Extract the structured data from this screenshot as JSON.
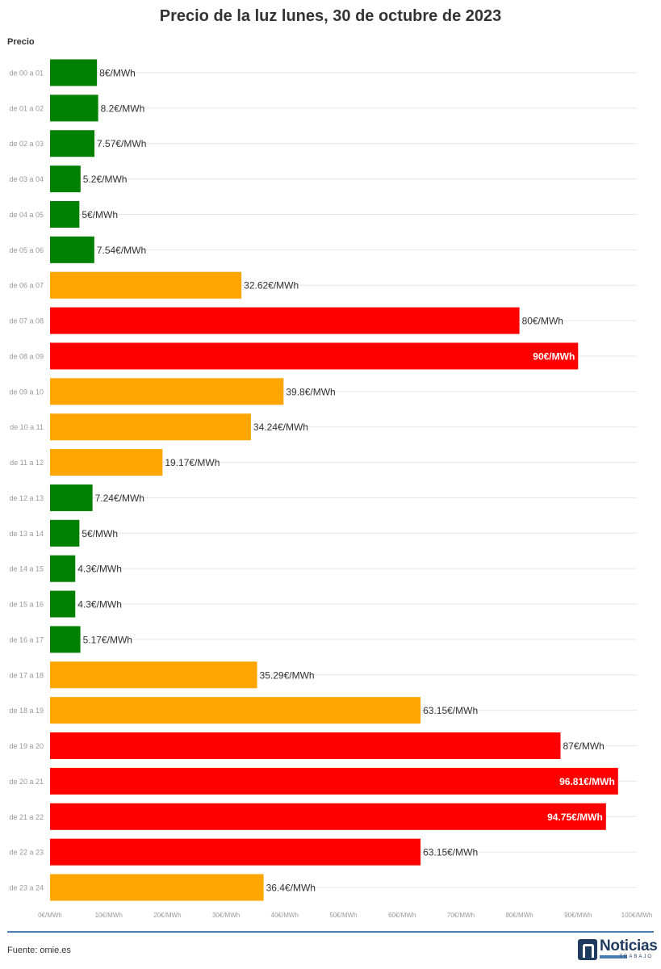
{
  "title": "Precio de la luz lunes, 30 de octubre de 2023",
  "footer": {
    "source": "Fuente: omie.es"
  },
  "logo": {
    "name": "Noticias",
    "sub": "TRABAJO"
  },
  "colors": {
    "low": "#008000",
    "mid": "#ffa500",
    "high": "#ff0000",
    "accent": "#4a7fb5"
  },
  "chart_data": {
    "type": "bar",
    "orientation": "horizontal",
    "title": "Precio de la luz lunes, 30 de octubre de 2023",
    "ylabel": "Precio",
    "xlabel": "",
    "xlim": [
      0,
      100
    ],
    "xticks": [
      "0€/MWh",
      "10€/MWh",
      "20€/MWh",
      "30€/MWh",
      "40€/MWh",
      "50€/MWh",
      "60€/MWh",
      "70€/MWh",
      "80€/MWh",
      "90€/MWh",
      "100€/MWh"
    ],
    "grid": true,
    "categories": [
      "de 00 a 01",
      "de 01 a 02",
      "de 02 a 03",
      "de 03 a 04",
      "de 04 a 05",
      "de 05 a 06",
      "de 06 a 07",
      "de 07 a 08",
      "de 08 a 09",
      "de 09 a 10",
      "de 10 a 11",
      "de 11 a 12",
      "de 12 a 13",
      "de 13 a 14",
      "de 14 a 15",
      "de 15 a 16",
      "de 16 a 17",
      "de 17 a 18",
      "de 18 a 19",
      "de 19 a 20",
      "de 20 a 21",
      "de 21 a 22",
      "de 22 a 23",
      "de 23 a 24"
    ],
    "values": [
      8,
      8.2,
      7.57,
      5.2,
      5,
      7.54,
      32.62,
      80,
      90,
      39.8,
      34.24,
      19.17,
      7.24,
      5,
      4.3,
      4.3,
      5.17,
      35.29,
      63.15,
      87,
      96.81,
      94.75,
      63.15,
      36.4
    ],
    "labels": [
      "8€/MWh",
      "8.2€/MWh",
      "7.57€/MWh",
      "5.2€/MWh",
      "5€/MWh",
      "7.54€/MWh",
      "32.62€/MWh",
      "80€/MWh",
      "90€/MWh",
      "39.8€/MWh",
      "34.24€/MWh",
      "19.17€/MWh",
      "7.24€/MWh",
      "5€/MWh",
      "4.3€/MWh",
      "4.3€/MWh",
      "5.17€/MWh",
      "35.29€/MWh",
      "63.15€/MWh",
      "87€/MWh",
      "96.81€/MWh",
      "94.75€/MWh",
      "63.15€/MWh",
      "36.4€/MWh"
    ],
    "bar_colors": [
      "#008000",
      "#008000",
      "#008000",
      "#008000",
      "#008000",
      "#008000",
      "#ffa500",
      "#ff0000",
      "#ff0000",
      "#ffa500",
      "#ffa500",
      "#ffa500",
      "#008000",
      "#008000",
      "#008000",
      "#008000",
      "#008000",
      "#ffa500",
      "#ffa500",
      "#ff0000",
      "#ff0000",
      "#ff0000",
      "#ff0000",
      "#ffa500"
    ]
  }
}
